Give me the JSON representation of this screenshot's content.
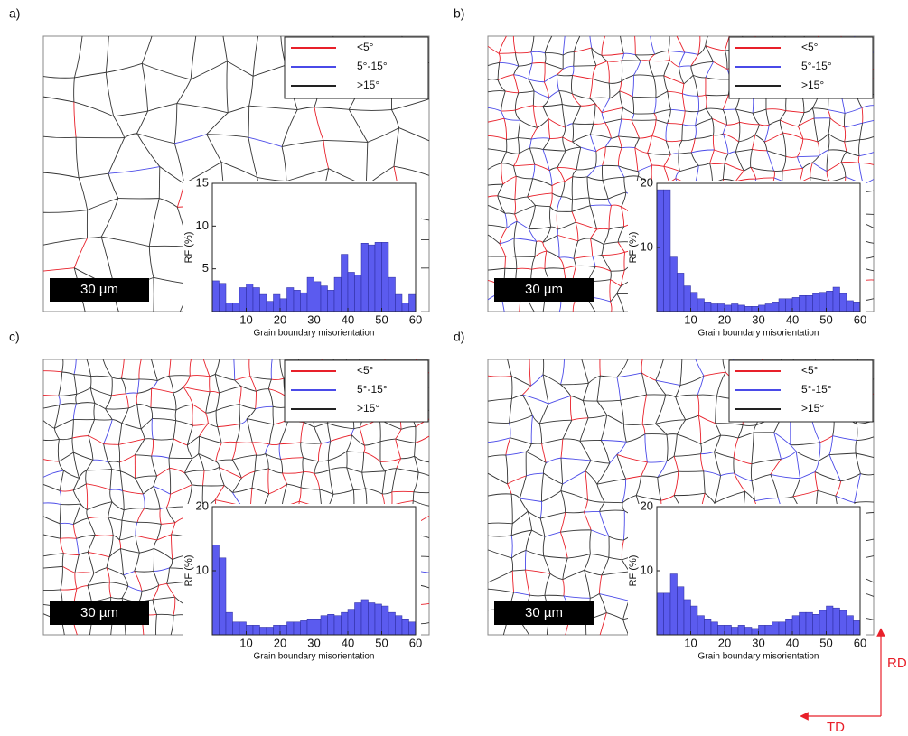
{
  "chart_data": [
    {
      "type": "histogram",
      "ylabel": "RF (%)",
      "xlabel": "Grain boundary misorientation",
      "color": "#5b5bef",
      "bins": [
        0,
        2,
        4,
        6,
        8,
        10,
        12,
        14,
        16,
        18,
        20,
        22,
        24,
        26,
        28,
        30,
        32,
        34,
        36,
        38,
        40,
        42,
        44,
        46,
        48,
        50,
        52,
        54,
        56,
        58,
        60
      ],
      "values": [
        3.6,
        3.3,
        1,
        1,
        2.8,
        3.2,
        2.8,
        2,
        1.2,
        2,
        1.5,
        2.8,
        2.5,
        2.2,
        4,
        3.5,
        3,
        2.5,
        4,
        6.7,
        4.6,
        4.3,
        8,
        7.8,
        8.1,
        8.1,
        4,
        2,
        1,
        2
      ],
      "xlim": [
        0,
        60
      ],
      "xticks": [
        10,
        20,
        30,
        40,
        50,
        60
      ],
      "ylim": [
        0,
        15
      ],
      "yticks": [
        5,
        10,
        15
      ]
    },
    {
      "type": "histogram",
      "ylabel": "RF (%)",
      "xlabel": "Grain boundary misorientation",
      "color": "#5b5bef",
      "bins": [
        0,
        2,
        4,
        6,
        8,
        10,
        12,
        14,
        16,
        18,
        20,
        22,
        24,
        26,
        28,
        30,
        32,
        34,
        36,
        38,
        40,
        42,
        44,
        46,
        48,
        50,
        52,
        54,
        56,
        58,
        60
      ],
      "values": [
        19,
        19,
        8.5,
        6,
        4,
        3,
        2,
        1.5,
        1.2,
        1.2,
        1,
        1.2,
        1,
        0.8,
        0.8,
        1,
        1.2,
        1.5,
        2,
        2,
        2.2,
        2.5,
        2.5,
        2.8,
        3,
        3.2,
        3.8,
        2.8,
        1.7,
        1.5
      ],
      "xlim": [
        0,
        60
      ],
      "xticks": [
        10,
        20,
        30,
        40,
        50,
        60
      ],
      "ylim": [
        0,
        20
      ],
      "yticks": [
        10,
        20
      ]
    },
    {
      "type": "histogram",
      "ylabel": "RF (%)",
      "xlabel": "Grain boundary misorientation",
      "color": "#5b5bef",
      "bins": [
        0,
        2,
        4,
        6,
        8,
        10,
        12,
        14,
        16,
        18,
        20,
        22,
        24,
        26,
        28,
        30,
        32,
        34,
        36,
        38,
        40,
        42,
        44,
        46,
        48,
        50,
        52,
        54,
        56,
        58,
        60
      ],
      "values": [
        14,
        12,
        3.5,
        2,
        2,
        1.5,
        1.5,
        1.2,
        1.2,
        1.5,
        1.5,
        2,
        2,
        2.2,
        2.5,
        2.5,
        3,
        3.2,
        3,
        3.5,
        4,
        5,
        5.5,
        5,
        4.8,
        4.5,
        3.5,
        3,
        2.5,
        2
      ],
      "xlim": [
        0,
        60
      ],
      "xticks": [
        10,
        20,
        30,
        40,
        50,
        60
      ],
      "ylim": [
        0,
        20
      ],
      "yticks": [
        10,
        20
      ]
    },
    {
      "type": "histogram",
      "ylabel": "RF (%)",
      "xlabel": "Grain boundary misorientation",
      "color": "#5b5bef",
      "bins": [
        0,
        2,
        4,
        6,
        8,
        10,
        12,
        14,
        16,
        18,
        20,
        22,
        24,
        26,
        28,
        30,
        32,
        34,
        36,
        38,
        40,
        42,
        44,
        46,
        48,
        50,
        52,
        54,
        56,
        58,
        60
      ],
      "values": [
        6.5,
        6.5,
        9.5,
        7.5,
        5.5,
        4.5,
        3,
        2.5,
        2,
        1.5,
        1.5,
        1.2,
        1.5,
        1.2,
        1,
        1.5,
        1.5,
        2,
        2,
        2.5,
        3,
        3.5,
        3.5,
        3.2,
        3.8,
        4.5,
        4.2,
        3.8,
        3,
        2.2
      ],
      "xlim": [
        0,
        60
      ],
      "xticks": [
        10,
        20,
        30,
        40,
        50,
        60
      ],
      "ylim": [
        0,
        20
      ],
      "yticks": [
        10,
        20
      ]
    }
  ],
  "panels": [
    {
      "label": "a)",
      "scale_bar": "30 µm",
      "legend": [
        {
          "name": "<5°",
          "color": "#e8202a"
        },
        {
          "name": "5°-15°",
          "color": "#4a4ae8"
        },
        {
          "name": ">15°",
          "color": "#222222"
        }
      ]
    },
    {
      "label": "b)",
      "scale_bar": "30 µm",
      "legend": [
        {
          "name": "<5°",
          "color": "#e8202a"
        },
        {
          "name": "5°-15°",
          "color": "#4a4ae8"
        },
        {
          "name": ">15°",
          "color": "#222222"
        }
      ]
    },
    {
      "label": "c)",
      "scale_bar": "30 µm",
      "legend": [
        {
          "name": "<5°",
          "color": "#e8202a"
        },
        {
          "name": "5°-15°",
          "color": "#4a4ae8"
        },
        {
          "name": ">15°",
          "color": "#222222"
        }
      ]
    },
    {
      "label": "d)",
      "scale_bar": "30 µm",
      "legend": [
        {
          "name": "<5°",
          "color": "#e8202a"
        },
        {
          "name": "5°-15°",
          "color": "#4a4ae8"
        },
        {
          "name": ">15°",
          "color": "#222222"
        }
      ]
    }
  ],
  "orientation": {
    "rd": "RD",
    "td": "TD"
  }
}
